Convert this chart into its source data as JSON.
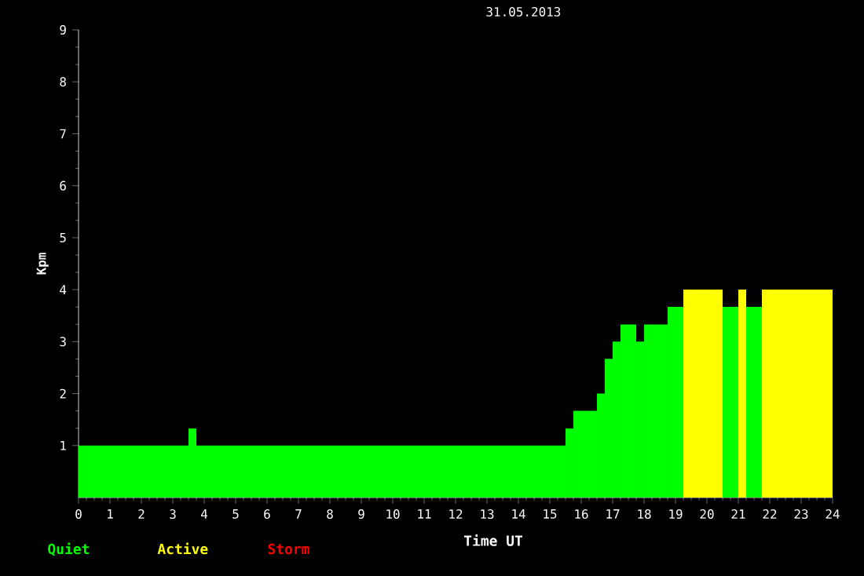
{
  "chart_data": {
    "type": "histogram",
    "title": "31.05.2013",
    "xlabel": "Time UT",
    "ylabel": "Kpm",
    "bins": [
      0,
      3.5,
      3.75,
      15.5,
      15.75,
      16.5,
      16.75,
      17,
      17.25,
      17.75,
      18,
      18.75,
      19.25,
      20.5,
      21,
      21.25,
      21.75,
      24
    ],
    "series": [
      {
        "name": "Quiet",
        "color": "#00ff00",
        "values": [
          1,
          1.33,
          1,
          1.33,
          1.67,
          2,
          2.67,
          3,
          3.33,
          3,
          3.33,
          3.67,
          null,
          3.67,
          null,
          3.67,
          null
        ]
      },
      {
        "name": "Active",
        "color": "#ffff00",
        "values": [
          null,
          null,
          null,
          null,
          null,
          null,
          null,
          null,
          null,
          null,
          null,
          null,
          4,
          null,
          4,
          null,
          4
        ]
      }
    ],
    "annotations": [
      "Storm"
    ],
    "xlim": [
      0,
      24
    ],
    "xticks": [
      0,
      1,
      2,
      3,
      4,
      5,
      6,
      7,
      8,
      9,
      10,
      11,
      12,
      13,
      14,
      15,
      16,
      17,
      18,
      19,
      20,
      21,
      22,
      23,
      24
    ],
    "ylim": [
      0,
      9
    ],
    "yticks": [
      1,
      2,
      3,
      4,
      5,
      6,
      7,
      8,
      9
    ],
    "legend": "bottom left"
  }
}
